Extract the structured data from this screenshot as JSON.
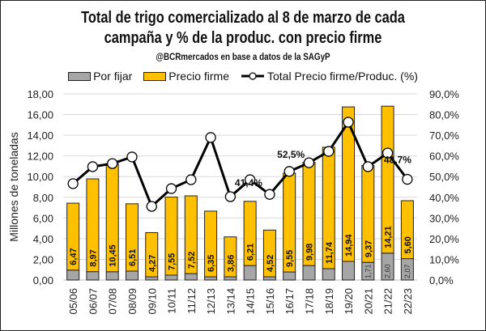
{
  "chart_data": {
    "type": "bar",
    "subtype": "stacked-bar-with-line",
    "title": "Total de trigo comercializado al 8 de marzo de cada campaña y % de la produc. con precio firme",
    "title_line1": "Total de trigo comercializado al 8 de marzo de cada",
    "title_line2": "campaña y % de la produc. con precio firme",
    "subtitle": "@BCRmercados en base a datos de la SAGyP",
    "xlabel": "",
    "ylabel": "Millones de toneladas",
    "y2label": "",
    "ylim": [
      0,
      18
    ],
    "y2lim": [
      0,
      90
    ],
    "yticks": [
      "0,00",
      "2,00",
      "4,00",
      "6,00",
      "8,00",
      "10,00",
      "12,00",
      "14,00",
      "16,00",
      "18,00"
    ],
    "y2ticks": [
      "0,0%",
      "10,0%",
      "20,0%",
      "30,0%",
      "40,0%",
      "50,0%",
      "60,0%",
      "70,0%",
      "80,0%",
      "90,0%"
    ],
    "grid": true,
    "legend_position": "top",
    "categories": [
      "05/06",
      "06/07",
      "07/08",
      "08/09",
      "09/10",
      "10/11",
      "11/12",
      "12/13",
      "13/14",
      "14/15",
      "15/16",
      "16/17",
      "17/18",
      "18/19",
      "19/20",
      "20/21",
      "21/22",
      "22/23"
    ],
    "series": [
      {
        "name": "Por fijar",
        "type": "bar",
        "axis": "left",
        "color": "#a6a6a6",
        "values": [
          0.96,
          0.81,
          0.8,
          0.86,
          0.31,
          0.47,
          0.62,
          0.31,
          0.31,
          1.4,
          0.31,
          0.78,
          1.4,
          1.1,
          1.8,
          1.71,
          2.6,
          2.07
        ],
        "labels": [
          "",
          "",
          "",
          "",
          "",
          "",
          "",
          "",
          "",
          "",
          "",
          "",
          "",
          "",
          "",
          "1,71",
          "2,60",
          "2,07"
        ]
      },
      {
        "name": "Precio firme",
        "type": "bar",
        "axis": "left",
        "color": "#ffc000",
        "values": [
          6.47,
          8.97,
          10.45,
          6.51,
          4.27,
          7.55,
          7.52,
          6.35,
          3.86,
          6.21,
          4.52,
          9.55,
          9.98,
          11.74,
          14.94,
          9.37,
          14.21,
          5.6
        ],
        "labels": [
          "6,47",
          "8,97",
          "10,45",
          "6,51",
          "4,27",
          "7,55",
          "7,52",
          "6,35",
          "3,86",
          "6,21",
          "4,52",
          "9,55",
          "9,98",
          "11,74",
          "14,94",
          "9,37",
          "14,21",
          "5,60"
        ]
      },
      {
        "name": "Total Precio firme/Produc. (%)",
        "type": "line",
        "axis": "right",
        "color": "#000000",
        "values": [
          46.6,
          54.8,
          56.3,
          59.5,
          35.6,
          44.2,
          48.5,
          68.9,
          40.3,
          48.5,
          41.4,
          52.5,
          56.7,
          62.2,
          76.3,
          54.8,
          61.4,
          48.7
        ],
        "labels": [
          "",
          "",
          "",
          "",
          "",
          "",
          "",
          "",
          "",
          "",
          "41,4%",
          "52,5%",
          "",
          "",
          "",
          "",
          "",
          "48,7%"
        ]
      }
    ]
  },
  "legend": {
    "items": [
      {
        "label": "Por fijar",
        "color": "#a6a6a6",
        "kind": "box"
      },
      {
        "label": "Precio firme",
        "color": "#ffc000",
        "kind": "box"
      },
      {
        "label": "Total Precio firme/Produc. (%)",
        "color": "#000000",
        "kind": "line-marker"
      }
    ]
  }
}
